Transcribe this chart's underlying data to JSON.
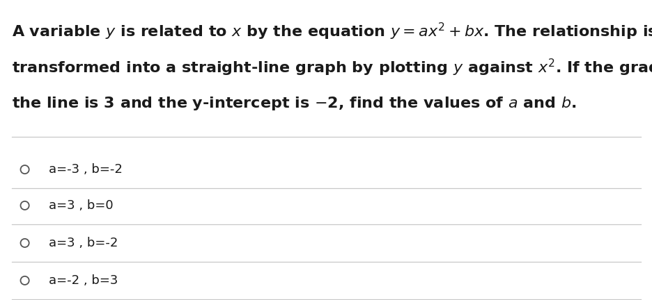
{
  "background_color": "#ffffff",
  "text_color": "#1a1a1a",
  "separator_color": "#c8c8c8",
  "question_fontsize": 16,
  "option_fontsize": 13,
  "circle_linewidth": 1.3,
  "figwidth": 9.37,
  "figheight": 4.32,
  "dpi": 100,
  "options": [
    "a=-3 , b=-2",
    "a=3 , b=0",
    "a=3 , b=-2",
    "a=-2 , b=3"
  ]
}
